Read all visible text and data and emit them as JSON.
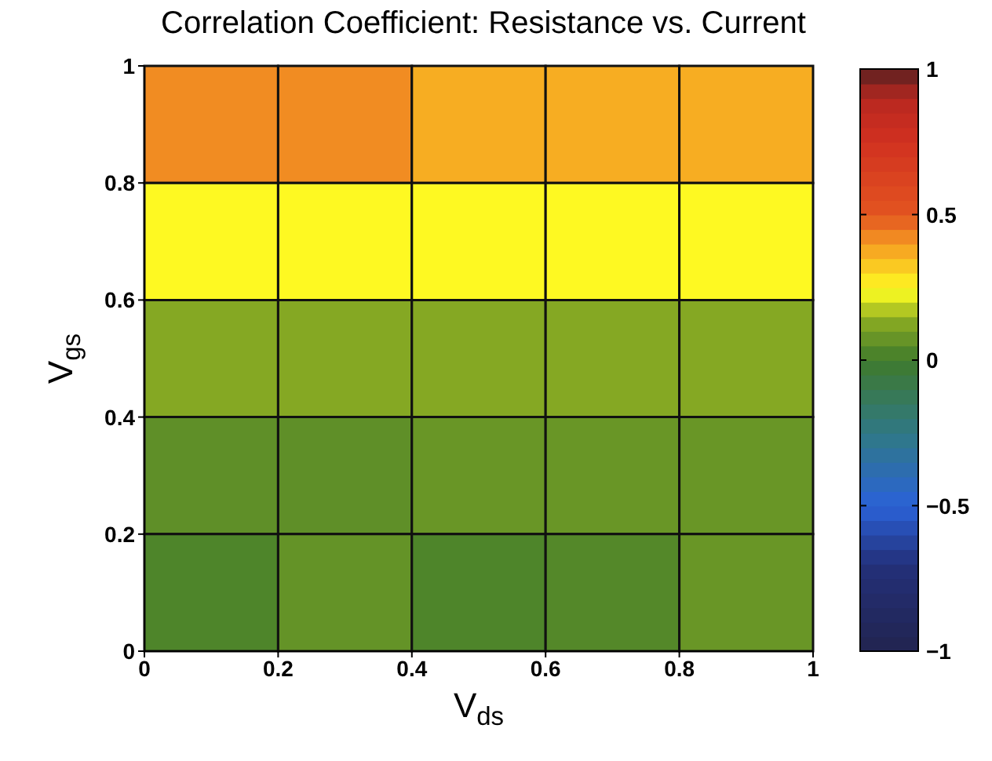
{
  "chart_data": {
    "type": "heatmap",
    "title": "Correlation Coefficient: Resistance vs. Current",
    "xlabel": "V$_{ds}$",
    "ylabel": "V$_{gs}$",
    "xlim": [
      0,
      1
    ],
    "ylim": [
      0,
      1
    ],
    "xticks": [
      0,
      0.2,
      0.4,
      0.6,
      0.8,
      1
    ],
    "yticks": [
      0,
      0.2,
      0.4,
      0.6,
      0.8,
      1
    ],
    "cells": [
      [
        0.42,
        0.42,
        0.37,
        0.37,
        0.37
      ],
      [
        0.25,
        0.25,
        0.25,
        0.25,
        0.25
      ],
      [
        0.13,
        0.13,
        0.13,
        0.13,
        0.13
      ],
      [
        0.06,
        0.06,
        0.08,
        0.08,
        0.08
      ],
      [
        0.03,
        0.07,
        0.03,
        0.04,
        0.08
      ]
    ],
    "clim": [
      -1,
      1
    ],
    "cticks": [
      -1,
      -0.5,
      0,
      0.5,
      1
    ]
  }
}
